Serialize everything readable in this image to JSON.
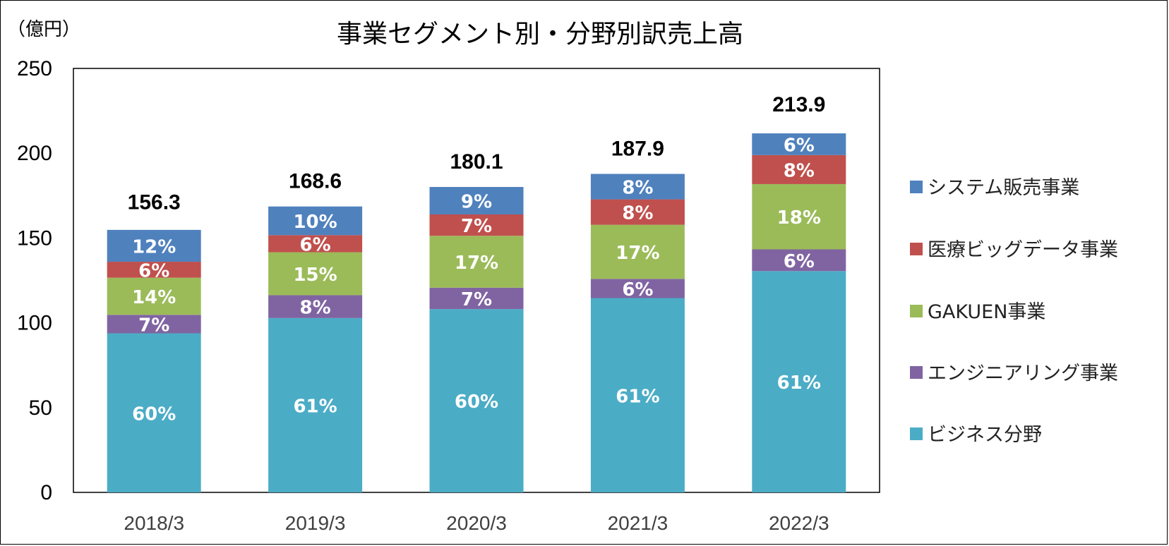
{
  "chart_data": {
    "type": "bar",
    "stacked": true,
    "title": "事業セグメント別・分野別訳売上高",
    "unit_label": "（億円）",
    "categories": [
      "2018/3",
      "2019/3",
      "2020/3",
      "2021/3",
      "2022/3"
    ],
    "ylim": [
      0,
      250
    ],
    "yticks": [
      "0",
      "50",
      "100",
      "150",
      "200",
      "250"
    ],
    "totals": [
      156.3,
      168.6,
      180.1,
      187.9,
      213.9
    ],
    "total_labels": [
      "156.3",
      "168.6",
      "180.1",
      "187.9",
      "213.9"
    ],
    "series": [
      {
        "name": "ビジネス分野",
        "color": "#4BACC6",
        "values": [
          93.8,
          102.8,
          108.1,
          114.6,
          130.5
        ],
        "labels": [
          "60%",
          "61%",
          "60%",
          "61%",
          "61%"
        ]
      },
      {
        "name": "エンジニアリング事業",
        "color": "#8064A2",
        "values": [
          10.9,
          13.5,
          12.6,
          11.3,
          12.8
        ],
        "labels": [
          "7%",
          "8%",
          "7%",
          "6%",
          "6%"
        ]
      },
      {
        "name": "GAKUEN事業",
        "color": "#9BBB59",
        "values": [
          21.9,
          25.3,
          30.6,
          31.9,
          38.5
        ],
        "labels": [
          "14%",
          "15%",
          "17%",
          "17%",
          "18%"
        ]
      },
      {
        "name": "医療ビッグデータ事業",
        "color": "#C0504D",
        "values": [
          9.4,
          10.1,
          12.6,
          15.0,
          17.1
        ],
        "labels": [
          "6%",
          "6%",
          "7%",
          "8%",
          "8%"
        ]
      },
      {
        "name": "システム販売事業",
        "color": "#4F81BD",
        "values": [
          18.8,
          16.9,
          16.2,
          15.0,
          12.8
        ],
        "labels": [
          "12%",
          "10%",
          "9%",
          "8%",
          "6%"
        ]
      }
    ],
    "legend_position": "right",
    "legend_order": [
      "システム販売事業",
      "医療ビッグデータ事業",
      "GAKUEN事業",
      "エンジニアリング事業",
      "ビジネス分野"
    ],
    "grid": false
  }
}
